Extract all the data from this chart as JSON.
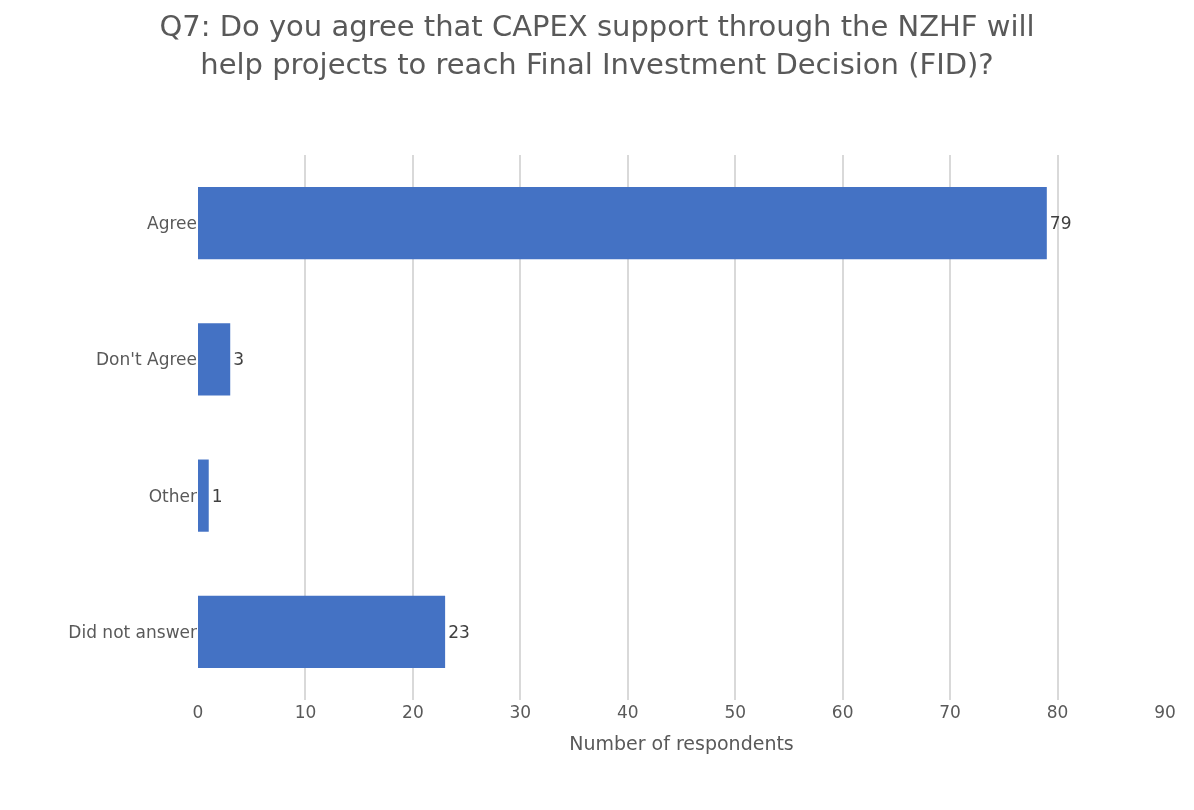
{
  "chart_data": {
    "type": "bar",
    "orientation": "horizontal",
    "title": "Q7: Do you agree that CAPEX support through the NZHF will\nhelp projects to reach Final Investment Decision (FID)?",
    "categories": [
      "Agree",
      "Don't Agree",
      "Other",
      "Did not answer"
    ],
    "values": [
      79,
      3,
      1,
      23
    ],
    "color": "#4472c4",
    "xlabel": "Number of respondents",
    "xlim": [
      0,
      90
    ],
    "xticks": [
      0,
      10,
      20,
      30,
      40,
      50,
      60,
      70,
      80,
      90
    ],
    "grid": "x",
    "data_labels": true
  }
}
